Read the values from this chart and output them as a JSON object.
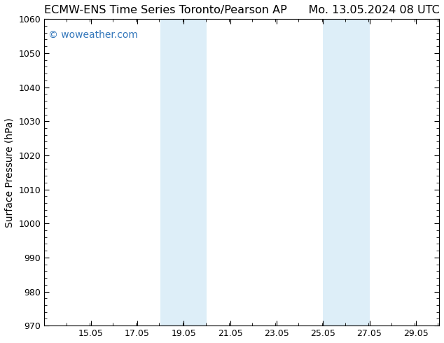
{
  "title_left": "ECMW-ENS Time Series Toronto/Pearson AP",
  "title_right": "Mo. 13.05.2024 08 UTC",
  "ylabel": "Surface Pressure (hPa)",
  "ylim": [
    970,
    1060
  ],
  "yticks": [
    970,
    980,
    990,
    1000,
    1010,
    1020,
    1030,
    1040,
    1050,
    1060
  ],
  "xlim_start": 13.05,
  "xlim_end": 30.05,
  "xtick_labels": [
    "15.05",
    "17.05",
    "19.05",
    "21.05",
    "23.05",
    "25.05",
    "27.05",
    "29.05"
  ],
  "xtick_positions": [
    15.05,
    17.05,
    19.05,
    21.05,
    23.05,
    25.05,
    27.05,
    29.05
  ],
  "background_color": "#ffffff",
  "plot_bg_color": "#ffffff",
  "shaded_bands": [
    {
      "x_start": 18.05,
      "x_end": 19.05,
      "color": "#ddeef8"
    },
    {
      "x_start": 19.05,
      "x_end": 20.05,
      "color": "#ddeef8"
    },
    {
      "x_start": 25.05,
      "x_end": 26.05,
      "color": "#ddeef8"
    },
    {
      "x_start": 26.05,
      "x_end": 27.05,
      "color": "#ddeef8"
    }
  ],
  "watermark_text": "© woweather.com",
  "watermark_color": "#3377bb",
  "title_fontsize": 11.5,
  "axis_label_fontsize": 10,
  "tick_fontsize": 9,
  "watermark_fontsize": 10
}
